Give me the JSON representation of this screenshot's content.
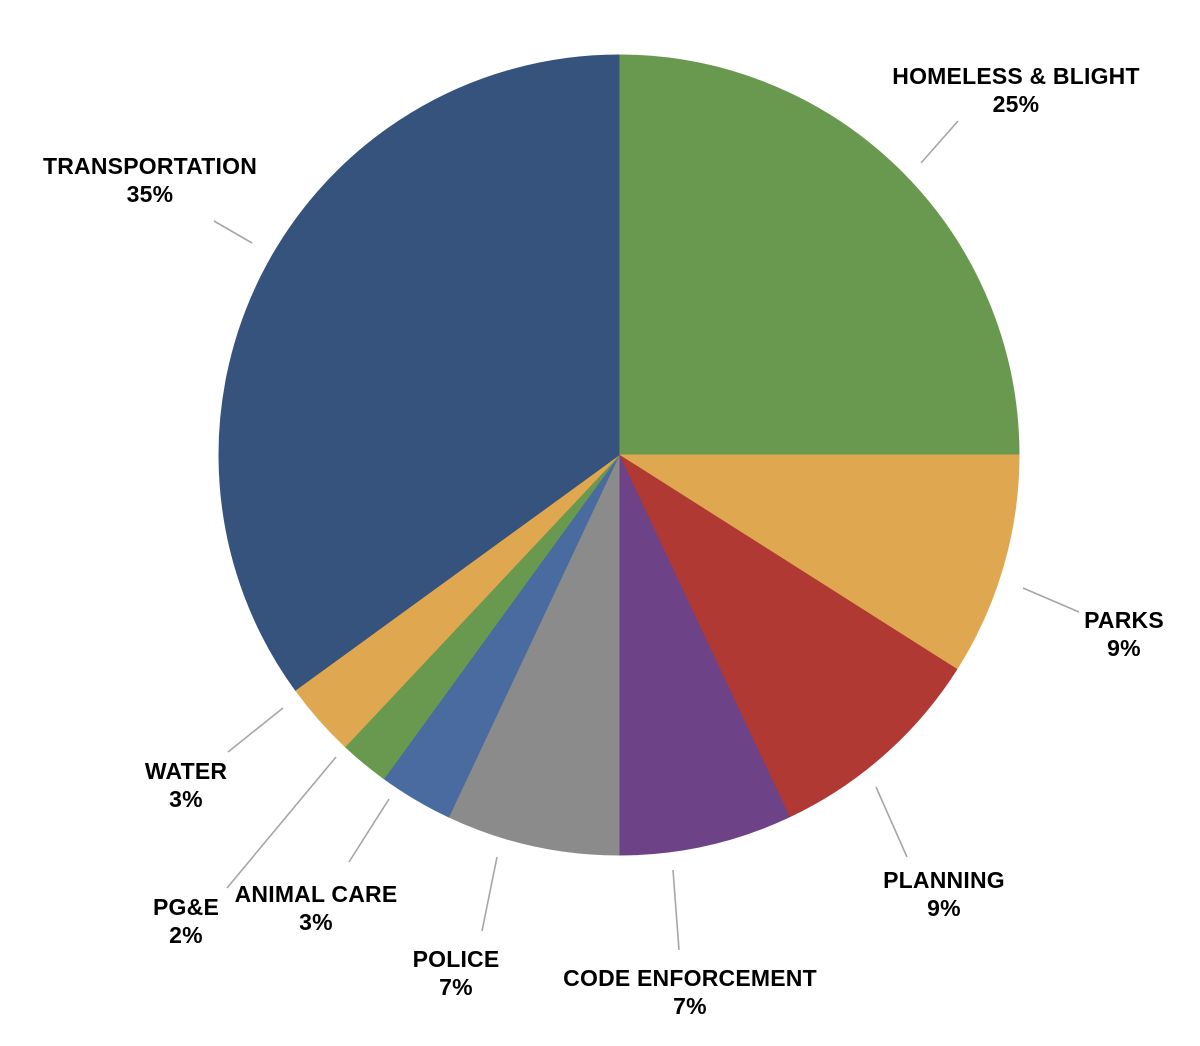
{
  "chart_data": {
    "type": "pie",
    "title": "",
    "legend": "none",
    "label_style": "outside-with-leader-lines",
    "direction": "clockwise",
    "start_angle_deg": 0,
    "background": "#FFFFFF",
    "text_color": "#000000",
    "leader_line_color": "#A6A6A6",
    "categories": [
      "HOMELESS & BLIGHT",
      "PARKS",
      "PLANNING",
      "CODE ENFORCEMENT",
      "POLICE",
      "ANIMAL CARE",
      "PG&E",
      "WATER",
      "TRANSPORTATION"
    ],
    "values": [
      25,
      9,
      9,
      7,
      7,
      3,
      2,
      3,
      35
    ],
    "value_labels": [
      "25%",
      "9%",
      "9%",
      "7%",
      "7%",
      "3%",
      "2%",
      "3%",
      "35%"
    ],
    "colors": [
      "#69994F",
      "#DFA850",
      "#B03A33",
      "#6E4287",
      "#8B8B8B",
      "#4A6B9F",
      "#69994F",
      "#DFA850",
      "#36537D"
    ]
  }
}
